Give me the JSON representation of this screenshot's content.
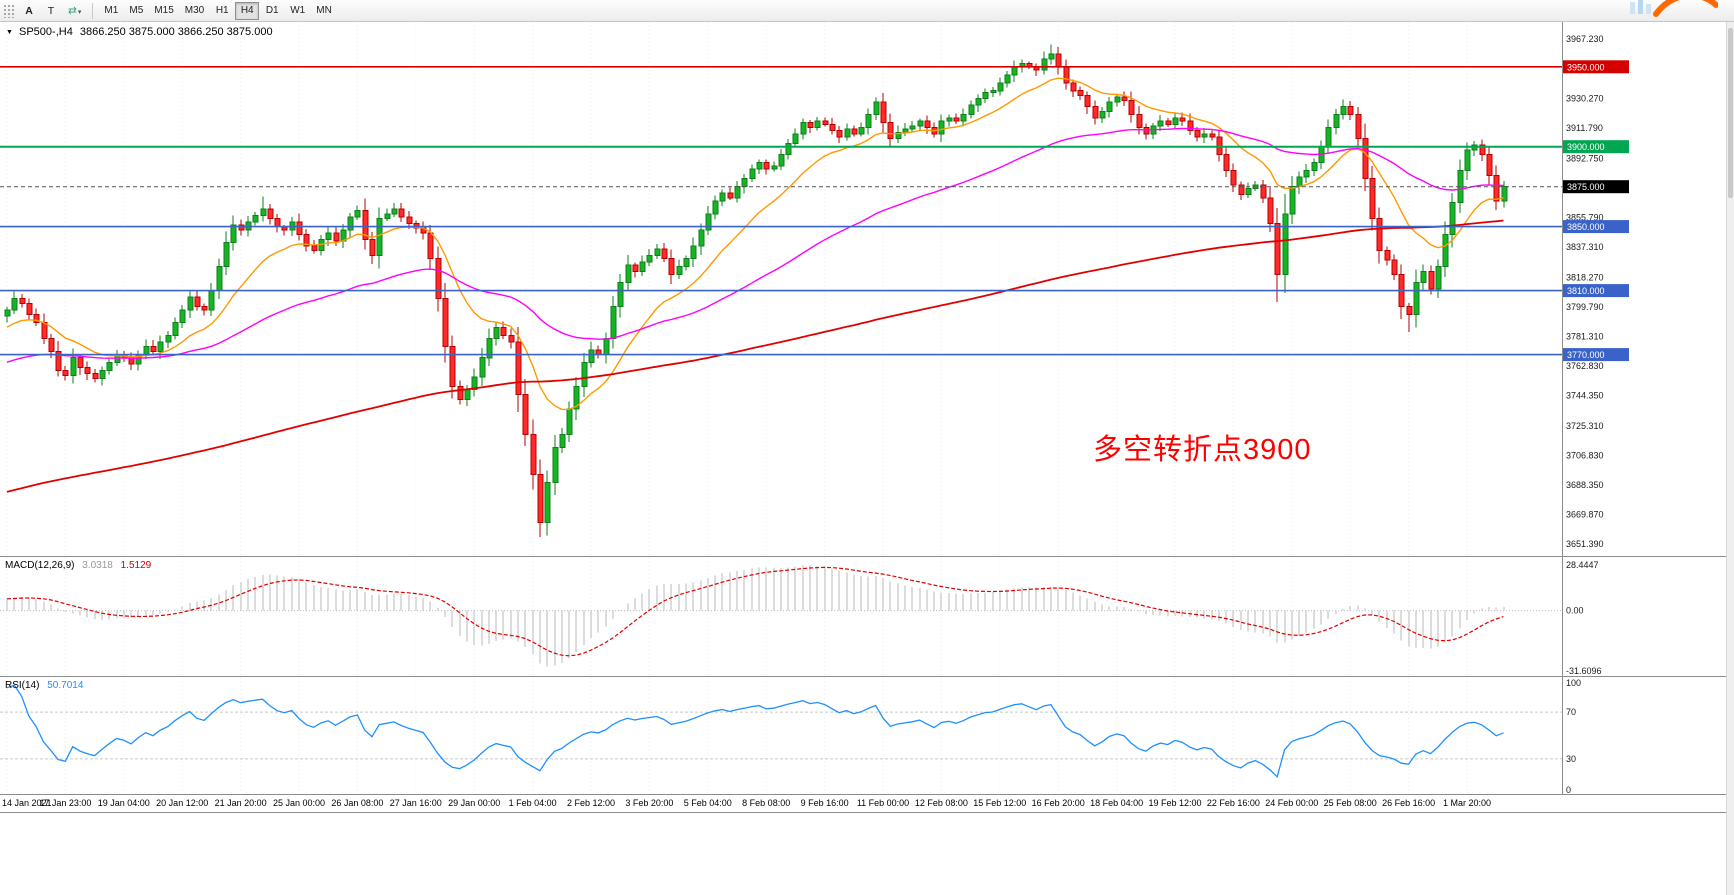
{
  "toolbar": {
    "tool_a": "A",
    "tool_t": "T",
    "pointer_tool": "⇄",
    "dropdown_caret": "▾",
    "timeframes": [
      "M1",
      "M5",
      "M15",
      "M30",
      "H1",
      "H4",
      "D1",
      "W1",
      "MN"
    ],
    "active_timeframe": "H4"
  },
  "chart": {
    "symbol_line": {
      "collapse_icon": "▼",
      "symbol": "SP500-,H4",
      "ohlc": "3866.250 3875.000 3866.250 3875.000"
    },
    "annotation": {
      "text": "多空转折点3900",
      "color": "#FF0000"
    },
    "bid": {
      "price": 3875.0,
      "label": "3875.000",
      "badge_color": "#000000",
      "line_color": "#555555"
    },
    "levels": [
      {
        "price": 3950.0,
        "label": "3950.000",
        "color": "#D40000",
        "width": 1.6
      },
      {
        "price": 3900.0,
        "label": "3900.000",
        "color": "#00A651",
        "width": 2.0
      },
      {
        "price": 3850.0,
        "label": "3850.000",
        "color": "#3A62C8",
        "width": 1.6
      },
      {
        "price": 3810.0,
        "label": "3810.000",
        "color": "#3A62C8",
        "width": 1.6
      },
      {
        "price": 3770.0,
        "label": "3770.000",
        "color": "#3A62C8",
        "width": 1.6
      }
    ],
    "price_axis_labels": [
      {
        "value": 3967.23,
        "text": "3967.230"
      },
      {
        "value": 3930.27,
        "text": "3930.270"
      },
      {
        "value": 3911.79,
        "text": "3911.790"
      },
      {
        "value": 3892.75,
        "text": "3892.750"
      },
      {
        "value": 3855.79,
        "text": "3855.790"
      },
      {
        "value": 3837.31,
        "text": "3837.310"
      },
      {
        "value": 3818.27,
        "text": "3818.270"
      },
      {
        "value": 3799.79,
        "text": "3799.790"
      },
      {
        "value": 3781.31,
        "text": "3781.310"
      },
      {
        "value": 3762.83,
        "text": "3762.830"
      },
      {
        "value": 3744.35,
        "text": "3744.350"
      },
      {
        "value": 3725.31,
        "text": "3725.310"
      },
      {
        "value": 3706.83,
        "text": "3706.830"
      },
      {
        "value": 3688.35,
        "text": "3688.350"
      },
      {
        "value": 3669.87,
        "text": "3669.870"
      },
      {
        "value": 3651.39,
        "text": "3651.390"
      }
    ]
  },
  "chart_data": {
    "type": "candlestick",
    "symbol": "SP500",
    "timeframe": "H4",
    "price_range": [
      3644,
      3978
    ],
    "closes": [
      3798,
      3805,
      3802,
      3795,
      3790,
      3780,
      3772,
      3760,
      3757,
      3768,
      3762,
      3758,
      3755,
      3760,
      3765,
      3770,
      3768,
      3764,
      3770,
      3775,
      3772,
      3778,
      3782,
      3790,
      3798,
      3806,
      3800,
      3798,
      3810,
      3825,
      3840,
      3851,
      3848,
      3853,
      3857,
      3861,
      3855,
      3850,
      3848,
      3853,
      3845,
      3838,
      3835,
      3842,
      3846,
      3841,
      3848,
      3856,
      3860,
      3842,
      3832,
      3855,
      3858,
      3861,
      3856,
      3852,
      3849,
      3846,
      3830,
      3805,
      3775,
      3750,
      3742,
      3748,
      3756,
      3768,
      3780,
      3787,
      3782,
      3778,
      3745,
      3720,
      3695,
      3665,
      3690,
      3712,
      3720,
      3736,
      3750,
      3765,
      3773,
      3770,
      3780,
      3800,
      3815,
      3826,
      3822,
      3828,
      3832,
      3836,
      3830,
      3820,
      3825,
      3830,
      3838,
      3848,
      3858,
      3866,
      3871,
      3868,
      3875,
      3880,
      3886,
      3890,
      3886,
      3888,
      3895,
      3902,
      3908,
      3915,
      3912,
      3916,
      3914,
      3910,
      3906,
      3911,
      3908,
      3912,
      3920,
      3928,
      3915,
      3905,
      3909,
      3911,
      3913,
      3916,
      3912,
      3908,
      3916,
      3918,
      3916,
      3920,
      3926,
      3930,
      3934,
      3935,
      3940,
      3945,
      3950,
      3952,
      3950,
      3948,
      3955,
      3958,
      3950,
      3940,
      3935,
      3932,
      3925,
      3918,
      3922,
      3928,
      3931,
      3929,
      3920,
      3912,
      3908,
      3913,
      3916,
      3914,
      3918,
      3916,
      3910,
      3906,
      3908,
      3906,
      3895,
      3885,
      3876,
      3870,
      3874,
      3876,
      3868,
      3852,
      3820,
      3858,
      3875,
      3881,
      3885,
      3890,
      3900,
      3912,
      3920,
      3925,
      3920,
      3905,
      3880,
      3855,
      3835,
      3829,
      3820,
      3800,
      3795,
      3815,
      3822,
      3811,
      3825,
      3845,
      3865,
      3885,
      3898,
      3901,
      3895,
      3882,
      3866,
      3875
    ],
    "wick_low_overrides": {
      "73": 3656,
      "174": 3803,
      "192": 3784
    },
    "wick_high_overrides": {
      "35": 3869,
      "143": 3964
    },
    "pre_trend": {
      "start": 3560,
      "end": 3795,
      "count": 210,
      "wiggle": 6
    },
    "moving_averages": [
      {
        "name": "ma-fast",
        "method": "ema",
        "period": 14,
        "color": "#FF9900",
        "width": 1.4
      },
      {
        "name": "ma-medium",
        "method": "ema",
        "period": 55,
        "color": "#FF00FF",
        "width": 1.4
      },
      {
        "name": "ma-slow",
        "method": "sma",
        "period": 200,
        "color": "#E00000",
        "width": 1.8
      }
    ],
    "candle_colors": {
      "up_fill": "#17B426",
      "up_stroke": "#0B7F18",
      "down_fill": "#FF2A2A",
      "down_stroke": "#B40000"
    },
    "grid_color": "#ECECEC",
    "time_labels": [
      "14 Jan 2021",
      "17 Jan 23:00",
      "19 Jan 04:00",
      "20 Jan 12:00",
      "21 Jan 20:00",
      "25 Jan 00:00",
      "26 Jan 08:00",
      "27 Jan 16:00",
      "29 Jan 00:00",
      "1 Feb 04:00",
      "2 Feb 12:00",
      "3 Feb 20:00",
      "5 Feb 04:00",
      "8 Feb 08:00",
      "9 Feb 16:00",
      "11 Feb 00:00",
      "12 Feb 08:00",
      "15 Feb 12:00",
      "16 Feb 20:00",
      "18 Feb 04:00",
      "19 Feb 12:00",
      "22 Feb 16:00",
      "24 Feb 00:00",
      "25 Feb 08:00",
      "26 Feb 16:00",
      "1 Mar 20:00"
    ],
    "indicators": {
      "macd": {
        "label": "MACD(12,26,9)",
        "value_main": "3.0318",
        "value_signal": "1.5129",
        "fast": 12,
        "slow": 26,
        "signal": 9,
        "axis_labels": [
          "28.4447",
          "0.00",
          "-31.6096"
        ],
        "histogram_color": "#B8B8B8",
        "signal_color": "#E00000"
      },
      "rsi": {
        "label": "RSI(14)",
        "value": "50.7014",
        "period": 14,
        "axis_labels": [
          "100",
          "70",
          "30",
          "0"
        ],
        "line_color": "#1E90FF",
        "level_lines": [
          70,
          30
        ],
        "level_color": "#C8C8C8"
      }
    }
  }
}
